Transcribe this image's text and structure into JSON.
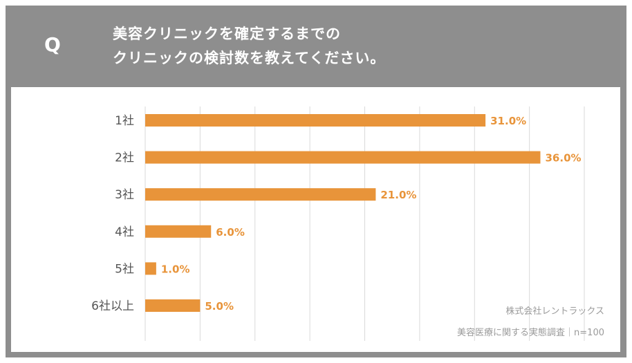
{
  "header": {
    "q_label": "Q",
    "question_line1": "美容クリニックを確定するまでの",
    "question_line2": "クリニックの検討数を教えてください。"
  },
  "chart_data": {
    "type": "bar",
    "orientation": "horizontal",
    "categories": [
      "1社",
      "2社",
      "3社",
      "4社",
      "5社",
      "6社以上"
    ],
    "values": [
      31.0,
      36.0,
      21.0,
      6.0,
      1.0,
      5.0
    ],
    "value_labels": [
      "31.0%",
      "36.0%",
      "21.0%",
      "6.0%",
      "1.0%",
      "5.0%"
    ],
    "xlim": [
      0,
      40
    ],
    "grid": true,
    "bar_color": "#e8943a",
    "label_color": "#e8943a"
  },
  "notes": {
    "source_company": "株式会社レントラックス",
    "survey": "美容医療に関する実態調査｜n=100"
  }
}
